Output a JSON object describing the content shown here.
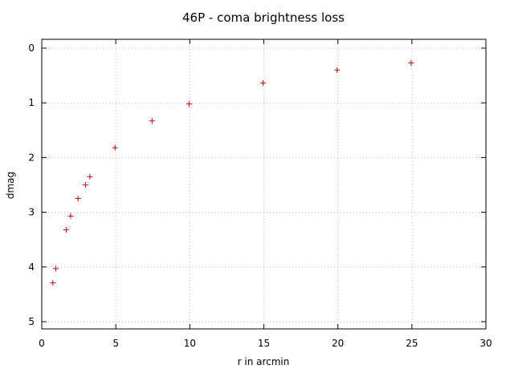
{
  "chart_data": {
    "type": "scatter",
    "title": "46P - coma brightness loss",
    "xlabel": "r in arcmin",
    "ylabel": "dmag",
    "xlim": [
      0,
      30
    ],
    "ylim": [
      0,
      5.15
    ],
    "y_inverted": true,
    "grid": true,
    "xticks": [
      "0",
      "5",
      "10",
      "15",
      "20",
      "25",
      "30"
    ],
    "yticks": [
      "0",
      "1",
      "2",
      "3",
      "4",
      "5"
    ],
    "series": [
      {
        "color": "#cc0000",
        "marker": "plus",
        "points": [
          {
            "x": 0.75,
            "y": 4.29
          },
          {
            "x": 0.95,
            "y": 4.03
          },
          {
            "x": 1.65,
            "y": 3.32
          },
          {
            "x": 1.95,
            "y": 3.07
          },
          {
            "x": 2.45,
            "y": 2.75
          },
          {
            "x": 2.95,
            "y": 2.5
          },
          {
            "x": 3.25,
            "y": 2.35
          },
          {
            "x": 4.95,
            "y": 1.82
          },
          {
            "x": 7.45,
            "y": 1.33
          },
          {
            "x": 9.95,
            "y": 1.02
          },
          {
            "x": 14.95,
            "y": 0.64
          },
          {
            "x": 19.95,
            "y": 0.4
          },
          {
            "x": 24.95,
            "y": 0.27
          }
        ]
      }
    ]
  }
}
